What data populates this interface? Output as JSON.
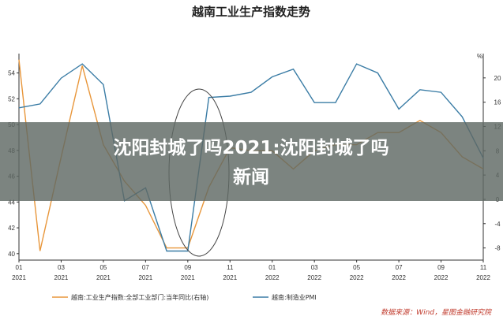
{
  "chart_data": {
    "type": "line",
    "title": "越南工业生产指数走势",
    "x": [
      "2021-01",
      "2021-02",
      "2021-03",
      "2021-04",
      "2021-05",
      "2021-06",
      "2021-07",
      "2021-08",
      "2021-09",
      "2021-10",
      "2021-11",
      "2021-12",
      "2022-01",
      "2022-02",
      "2022-03",
      "2022-04",
      "2022-05",
      "2022-06",
      "2022-07",
      "2022-08",
      "2022-09",
      "2022-10",
      "2022-11"
    ],
    "x_tick_labels": [
      {
        "month": "01",
        "year": "2021"
      },
      {
        "month": "03",
        "year": "2021"
      },
      {
        "month": "05",
        "year": "2021"
      },
      {
        "month": "07",
        "year": "2021"
      },
      {
        "month": "09",
        "year": "2021"
      },
      {
        "month": "11",
        "year": "2021"
      },
      {
        "month": "01",
        "year": "2022"
      },
      {
        "month": "03",
        "year": "2022"
      },
      {
        "month": "05",
        "year": "2022"
      },
      {
        "month": "07",
        "year": "2022"
      },
      {
        "month": "09",
        "year": "2022"
      },
      {
        "month": "11",
        "year": "2022"
      }
    ],
    "left_axis": {
      "ylim": [
        39.5,
        55.5
      ],
      "ticks": [
        40,
        42,
        44,
        46,
        48,
        50,
        52,
        54
      ]
    },
    "right_axis": {
      "unit": "%",
      "ylim": [
        -10,
        24
      ],
      "ticks": [
        -8,
        -4,
        0,
        4,
        8,
        12,
        16,
        20
      ]
    },
    "series": [
      {
        "name": "越南:工业生产指数:全部工业部门:当年同比(右轴)",
        "axis": "right",
        "color": "#e8963a",
        "values": [
          23.0,
          -8.5,
          7.0,
          22.0,
          9.0,
          3.0,
          -1.0,
          -8.0,
          -8.0,
          2.0,
          8.5,
          8.0,
          8.0,
          5.0,
          8.0,
          9.0,
          9.0,
          11.0,
          11.0,
          13.0,
          11.0,
          7.0,
          5.0
        ]
      },
      {
        "name": "越南:制造业PMI",
        "axis": "left",
        "color": "#3a7ca5",
        "values": [
          51.3,
          51.6,
          53.6,
          54.7,
          53.1,
          44.1,
          45.1,
          40.2,
          40.2,
          52.1,
          52.2,
          52.5,
          53.7,
          54.3,
          51.7,
          51.7,
          54.7,
          54.0,
          51.2,
          52.7,
          52.5,
          50.6,
          47.4
        ]
      }
    ],
    "annotation": "ellipse-highlight-2021-08-to-2021-10",
    "legend_position": "bottom",
    "grid": false
  },
  "overlay": {
    "line1": "沈阳封城了吗2021:沈阳封城了吗",
    "line2": "新闻"
  },
  "source": "数据来源：Wind，星图金融研究院"
}
